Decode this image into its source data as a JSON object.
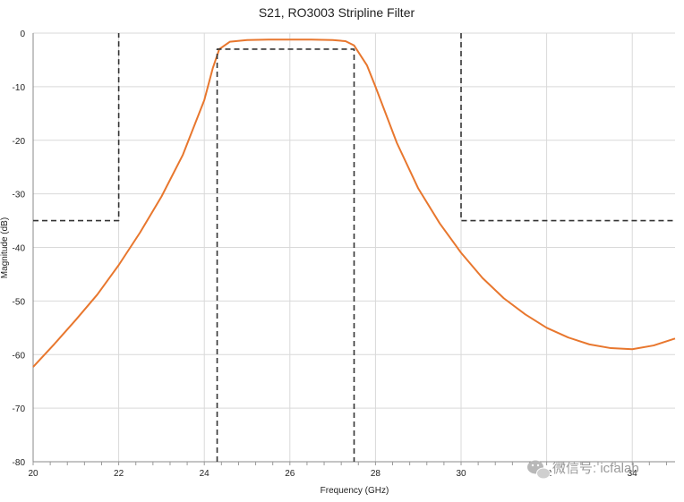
{
  "chart_data": {
    "type": "line",
    "title": "S21, RO3003 Stripline Filter",
    "xlabel": "Frequency (GHz)",
    "ylabel": "Magnitude (dB)",
    "xlim": [
      20,
      35
    ],
    "ylim": [
      -80,
      0
    ],
    "x_ticks": [
      20,
      22,
      24,
      26,
      28,
      30,
      32,
      34
    ],
    "x_tick_labels": [
      "20",
      "22",
      "24",
      "26",
      "28",
      "30",
      "32",
      "34"
    ],
    "y_ticks": [
      0,
      -10,
      -20,
      -30,
      -40,
      -50,
      -60,
      -70,
      -80
    ],
    "y_tick_labels": [
      "0",
      "-10",
      "-20",
      "-30",
      "-40",
      "-50",
      "-60",
      "-70",
      "-80"
    ],
    "grid": true,
    "series": [
      {
        "style": "solid",
        "color": "#e8772e",
        "x": [
          20,
          20.5,
          21,
          21.5,
          22,
          22.5,
          23,
          23.5,
          24,
          24.2,
          24.35,
          24.6,
          25,
          25.5,
          26,
          26.5,
          27,
          27.3,
          27.5,
          27.8,
          28,
          28.5,
          29,
          29.5,
          30,
          30.5,
          31,
          31.5,
          32,
          32.5,
          33,
          33.5,
          34,
          34.5,
          35
        ],
        "y": [
          -62.3,
          -58,
          -53.5,
          -48.8,
          -43.3,
          -37.2,
          -30.5,
          -22.7,
          -12.5,
          -6.5,
          -3,
          -1.6,
          -1.3,
          -1.2,
          -1.2,
          -1.2,
          -1.3,
          -1.5,
          -2.3,
          -6,
          -10,
          -20.5,
          -29,
          -35.5,
          -41,
          -45.7,
          -49.5,
          -52.5,
          -55,
          -56.8,
          -58.1,
          -58.8,
          -59,
          -58.3,
          -57
        ]
      },
      {
        "style": "dashed",
        "color": "#333333",
        "x": [
          20,
          22,
          22
        ],
        "y": [
          -35,
          -35,
          0
        ]
      },
      {
        "style": "dashed",
        "color": "#333333",
        "x": [
          24.3,
          24.3,
          27.5,
          27.5
        ],
        "y": [
          -80,
          -3,
          -3,
          -80
        ]
      },
      {
        "style": "dashed",
        "color": "#333333",
        "x": [
          30,
          30,
          35
        ],
        "y": [
          0,
          -35,
          -35
        ]
      }
    ]
  },
  "watermark": {
    "text": "微信号: icfalab",
    "icon": "wechat-icon"
  }
}
